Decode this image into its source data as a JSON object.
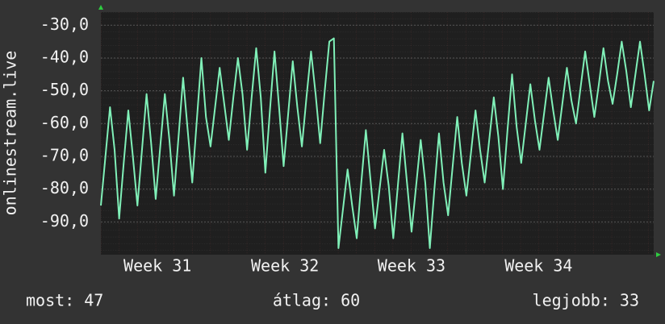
{
  "chart_data": {
    "type": "line",
    "y_label": "onlinestream.live",
    "color": "#80f0b8",
    "values": [
      -85,
      -70,
      -55,
      -68,
      -89,
      -72,
      -56,
      -70,
      -85,
      -68,
      -51,
      -66,
      -83,
      -67,
      -51,
      -65,
      -82,
      -64,
      -46,
      -62,
      -78,
      -59,
      -40,
      -58,
      -67,
      -55,
      -43,
      -54,
      -65,
      -52,
      -40,
      -51,
      -68,
      -52,
      -37,
      -52,
      -75,
      -56,
      -38,
      -55,
      -73,
      -57,
      -41,
      -55,
      -67,
      -52,
      -38,
      -51,
      -66,
      -50,
      -35,
      -34,
      -98,
      -86,
      -74,
      -85,
      -95,
      -78,
      -62,
      -77,
      -92,
      -80,
      -68,
      -79,
      -95,
      -79,
      -63,
      -78,
      -93,
      -79,
      -65,
      -78,
      -98,
      -80,
      -63,
      -78,
      -88,
      -73,
      -58,
      -72,
      -82,
      -69,
      -56,
      -68,
      -78,
      -65,
      -52,
      -64,
      -80,
      -62,
      -45,
      -61,
      -72,
      -60,
      -48,
      -59,
      -68,
      -57,
      -46,
      -56,
      -65,
      -54,
      -43,
      -53,
      -60,
      -49,
      -38,
      -48,
      -58,
      -48,
      -37,
      -47,
      -54,
      -45,
      -35,
      -44,
      -55,
      -45,
      -35,
      -45,
      -56,
      -47
    ],
    "xlim": [
      0,
      121
    ],
    "xticks": [
      {
        "value": 12.4,
        "label": "Week 31"
      },
      {
        "value": 40.3,
        "label": "Week 32"
      },
      {
        "value": 68,
        "label": "Week 33"
      },
      {
        "value": 95.8,
        "label": "Week 34"
      }
    ],
    "ylim": [
      -100,
      -26
    ],
    "yticks": [
      {
        "value": -30,
        "label": "-30,0"
      },
      {
        "value": -40,
        "label": "-40,0"
      },
      {
        "value": -50,
        "label": "-50,0"
      },
      {
        "value": -60,
        "label": "-60,0"
      },
      {
        "value": -70,
        "label": "-70,0"
      },
      {
        "value": -80,
        "label": "-80,0"
      },
      {
        "value": -90,
        "label": "-90,0"
      }
    ],
    "grid": true,
    "stats": [
      "most: 47",
      "átlag: 60",
      "legjobb: 33"
    ]
  }
}
